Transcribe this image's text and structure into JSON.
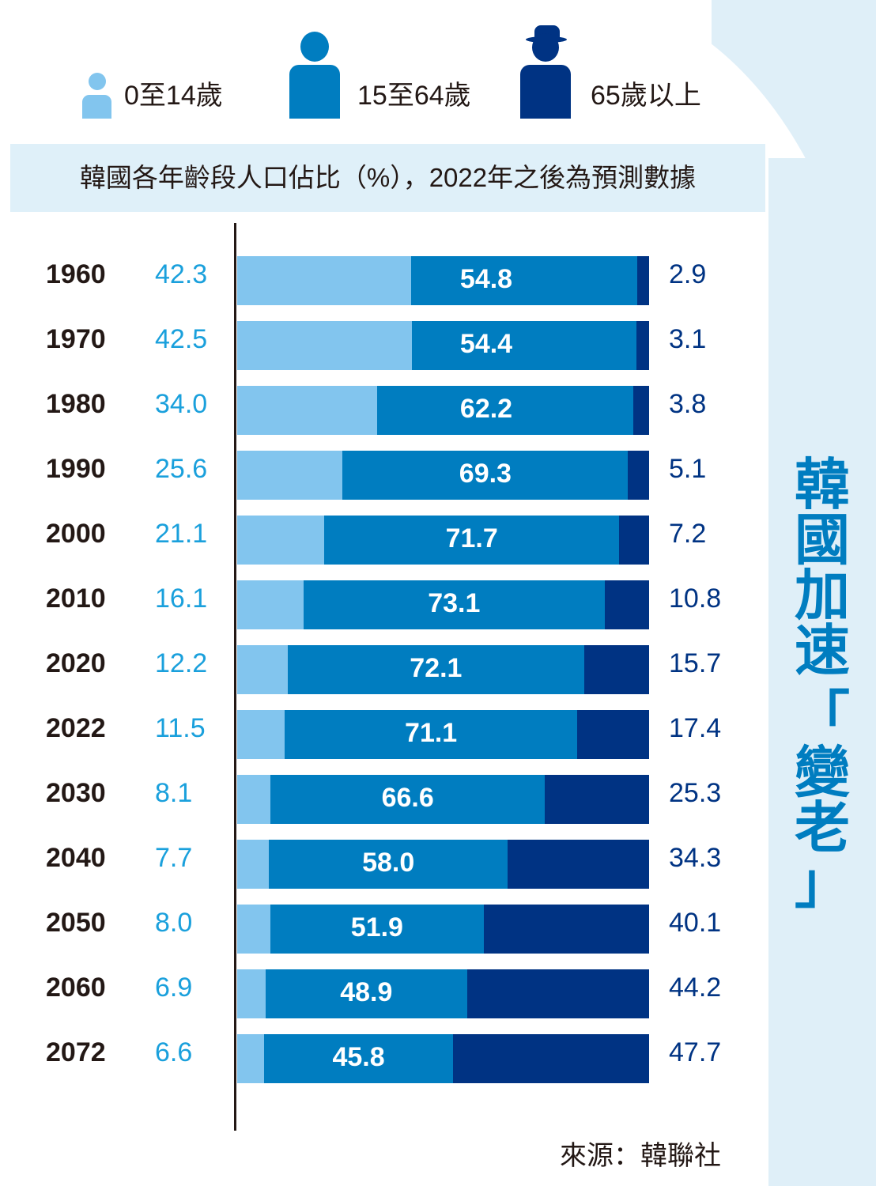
{
  "legend": [
    {
      "label": "0至14歲",
      "icon": "child-person-icon",
      "color": "#82C5EE"
    },
    {
      "label": "15至64歲",
      "icon": "adult-person-icon",
      "color": "#007DC0"
    },
    {
      "label": "65歲以上",
      "icon": "elderly-person-with-hat-icon",
      "color": "#003383"
    }
  ],
  "side_title": [
    "韓",
    "國",
    "加",
    "速",
    "「",
    "變",
    "老",
    "」"
  ],
  "source": "來源：韓聯社",
  "chart_data": {
    "type": "bar",
    "orientation": "horizontal",
    "stacked": true,
    "title": "韓國各年齡段人口佔比（%），2022年之後為預測數據",
    "xlabel": "",
    "ylabel": "",
    "xlim": [
      0,
      100
    ],
    "grid": false,
    "legend_position": "top",
    "categories": [
      "1960",
      "1970",
      "1980",
      "1990",
      "2000",
      "2010",
      "2020",
      "2022",
      "2030",
      "2040",
      "2050",
      "2060",
      "2072"
    ],
    "series": [
      {
        "name": "0至14歲",
        "color": "#82C5EE",
        "label_color": "#1AA0DC",
        "values": [
          42.3,
          42.5,
          34.0,
          25.6,
          21.1,
          16.1,
          12.2,
          11.5,
          8.1,
          7.7,
          8.0,
          6.9,
          6.6
        ],
        "labels": [
          "42.3",
          "42.5",
          "34.0",
          "25.6",
          "21.1",
          "16.1",
          "12.2",
          "11.5",
          "8.1",
          "7.7",
          "8.0",
          "6.9",
          "6.6"
        ]
      },
      {
        "name": "15至64歲",
        "color": "#007DC0",
        "label_color": "#FFFFFF",
        "values": [
          54.8,
          54.4,
          62.2,
          69.3,
          71.7,
          73.1,
          72.1,
          71.1,
          66.6,
          58.0,
          51.9,
          48.9,
          45.8
        ],
        "labels": [
          "54.8",
          "54.4",
          "62.2",
          "69.3",
          "71.7",
          "73.1",
          "72.1",
          "71.1",
          "66.6",
          "58.0",
          "51.9",
          "48.9",
          "45.8"
        ]
      },
      {
        "name": "65歲以上",
        "color": "#003383",
        "label_color": "#003383",
        "values": [
          2.9,
          3.1,
          3.8,
          5.1,
          7.2,
          10.8,
          15.7,
          17.4,
          25.3,
          34.3,
          40.1,
          44.2,
          47.7
        ],
        "labels": [
          "2.9",
          "3.1",
          "3.8",
          "5.1",
          "7.2",
          "10.8",
          "15.7",
          "17.4",
          "25.3",
          "34.3",
          "40.1",
          "44.2",
          "47.7"
        ]
      }
    ]
  }
}
